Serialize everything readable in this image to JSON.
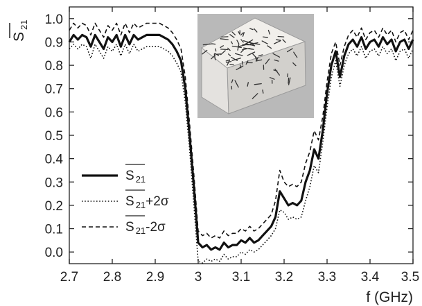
{
  "chart_data": {
    "type": "line",
    "ylabel_main": "S",
    "ylabel_sub": "21",
    "xlabel": "f (GHz)",
    "xlim": [
      2.7,
      3.5
    ],
    "ylim": [
      -0.05,
      1.05
    ],
    "xticks": [
      2.7,
      2.8,
      2.9,
      3.0,
      3.1,
      3.2,
      3.3,
      3.4,
      3.5
    ],
    "xtick_labels": [
      "2.7",
      "2.8",
      "2.9",
      "3",
      "3.1",
      "3.2",
      "3.3",
      "3.4",
      "3.5"
    ],
    "yticks": [
      0.0,
      0.1,
      0.2,
      0.3,
      0.4,
      0.5,
      0.6,
      0.7,
      0.8,
      0.9,
      1.0
    ],
    "ytick_labels": [
      "0.0",
      "0.1",
      "0.2",
      "0.3",
      "0.4",
      "0.5",
      "0.6",
      "0.7",
      "0.8",
      "0.9",
      "1.0"
    ],
    "grid": false,
    "legend_position": "left",
    "inset": "photograph of a cubic sample with a surface pattern of short randomly oriented dark strokes",
    "series": [
      {
        "legend_main": "S",
        "legend_sub": "21",
        "legend_suffix": "",
        "line_style": "solid",
        "x": [
          2.7,
          2.71,
          2.72,
          2.73,
          2.74,
          2.75,
          2.76,
          2.77,
          2.78,
          2.79,
          2.8,
          2.81,
          2.82,
          2.83,
          2.84,
          2.85,
          2.86,
          2.87,
          2.88,
          2.89,
          2.9,
          2.91,
          2.92,
          2.93,
          2.94,
          2.95,
          2.96,
          2.97,
          2.98,
          2.99,
          3.0,
          3.01,
          3.02,
          3.03,
          3.04,
          3.05,
          3.06,
          3.07,
          3.08,
          3.09,
          3.1,
          3.11,
          3.12,
          3.13,
          3.14,
          3.15,
          3.16,
          3.17,
          3.18,
          3.19,
          3.2,
          3.21,
          3.22,
          3.23,
          3.24,
          3.25,
          3.26,
          3.27,
          3.28,
          3.29,
          3.3,
          3.31,
          3.32,
          3.33,
          3.34,
          3.35,
          3.36,
          3.37,
          3.38,
          3.39,
          3.4,
          3.41,
          3.42,
          3.43,
          3.44,
          3.45,
          3.46,
          3.47,
          3.48,
          3.49,
          3.5
        ],
        "y": [
          0.9,
          0.93,
          0.91,
          0.93,
          0.92,
          0.88,
          0.93,
          0.9,
          0.87,
          0.92,
          0.9,
          0.93,
          0.88,
          0.93,
          0.89,
          0.93,
          0.91,
          0.92,
          0.93,
          0.93,
          0.93,
          0.93,
          0.92,
          0.91,
          0.89,
          0.86,
          0.82,
          0.7,
          0.5,
          0.28,
          0.04,
          0.02,
          0.03,
          0.01,
          0.02,
          0.01,
          0.04,
          0.02,
          0.03,
          0.03,
          0.05,
          0.04,
          0.06,
          0.04,
          0.05,
          0.07,
          0.09,
          0.11,
          0.15,
          0.26,
          0.23,
          0.2,
          0.21,
          0.2,
          0.22,
          0.3,
          0.35,
          0.44,
          0.4,
          0.52,
          0.68,
          0.8,
          0.86,
          0.75,
          0.84,
          0.89,
          0.91,
          0.88,
          0.92,
          0.87,
          0.9,
          0.91,
          0.88,
          0.92,
          0.89,
          0.91,
          0.86,
          0.9,
          0.91,
          0.87,
          0.91
        ]
      },
      {
        "legend_main": "S",
        "legend_sub": "21",
        "legend_suffix": "+2σ",
        "line_style": "dotted",
        "x": [
          2.7,
          2.71,
          2.72,
          2.73,
          2.74,
          2.75,
          2.76,
          2.77,
          2.78,
          2.79,
          2.8,
          2.81,
          2.82,
          2.83,
          2.84,
          2.85,
          2.86,
          2.87,
          2.88,
          2.89,
          2.9,
          2.91,
          2.92,
          2.93,
          2.94,
          2.95,
          2.96,
          2.97,
          2.98,
          2.99,
          3.0,
          3.01,
          3.02,
          3.03,
          3.04,
          3.05,
          3.06,
          3.07,
          3.08,
          3.09,
          3.1,
          3.11,
          3.12,
          3.13,
          3.14,
          3.15,
          3.16,
          3.17,
          3.18,
          3.19,
          3.2,
          3.21,
          3.22,
          3.23,
          3.24,
          3.25,
          3.26,
          3.27,
          3.28,
          3.29,
          3.3,
          3.31,
          3.32,
          3.33,
          3.34,
          3.35,
          3.36,
          3.37,
          3.38,
          3.39,
          3.4,
          3.41,
          3.42,
          3.43,
          3.44,
          3.45,
          3.46,
          3.47,
          3.48,
          3.49,
          3.5
        ],
        "y": [
          0.87,
          0.89,
          0.87,
          0.89,
          0.88,
          0.83,
          0.89,
          0.86,
          0.83,
          0.88,
          0.86,
          0.89,
          0.84,
          0.89,
          0.85,
          0.89,
          0.86,
          0.87,
          0.88,
          0.88,
          0.88,
          0.88,
          0.87,
          0.86,
          0.84,
          0.81,
          0.77,
          0.64,
          0.44,
          0.2,
          -0.04,
          -0.05,
          -0.03,
          -0.04,
          -0.03,
          -0.04,
          -0.01,
          -0.03,
          -0.02,
          -0.02,
          0.0,
          -0.01,
          0.01,
          0.0,
          0.01,
          0.03,
          0.05,
          0.07,
          0.1,
          0.18,
          0.17,
          0.14,
          0.15,
          0.14,
          0.15,
          0.22,
          0.28,
          0.37,
          0.34,
          0.47,
          0.62,
          0.75,
          0.82,
          0.71,
          0.8,
          0.85,
          0.87,
          0.84,
          0.88,
          0.83,
          0.86,
          0.87,
          0.84,
          0.88,
          0.85,
          0.87,
          0.82,
          0.86,
          0.87,
          0.83,
          0.87
        ]
      },
      {
        "legend_main": "S",
        "legend_sub": "21",
        "legend_suffix": "-2σ",
        "line_style": "dashed",
        "x": [
          2.7,
          2.71,
          2.72,
          2.73,
          2.74,
          2.75,
          2.76,
          2.77,
          2.78,
          2.79,
          2.8,
          2.81,
          2.82,
          2.83,
          2.84,
          2.85,
          2.86,
          2.87,
          2.88,
          2.89,
          2.9,
          2.91,
          2.92,
          2.93,
          2.94,
          2.95,
          2.96,
          2.97,
          2.98,
          2.99,
          3.0,
          3.01,
          3.02,
          3.03,
          3.04,
          3.05,
          3.06,
          3.07,
          3.08,
          3.09,
          3.1,
          3.11,
          3.12,
          3.13,
          3.14,
          3.15,
          3.16,
          3.17,
          3.18,
          3.19,
          3.2,
          3.21,
          3.22,
          3.23,
          3.24,
          3.25,
          3.26,
          3.27,
          3.28,
          3.29,
          3.3,
          3.31,
          3.32,
          3.33,
          3.34,
          3.35,
          3.36,
          3.37,
          3.38,
          3.39,
          3.4,
          3.41,
          3.42,
          3.43,
          3.44,
          3.45,
          3.46,
          3.47,
          3.48,
          3.49,
          3.5
        ],
        "y": [
          0.95,
          0.98,
          0.96,
          0.98,
          0.97,
          0.93,
          0.98,
          0.95,
          0.92,
          0.97,
          0.95,
          0.98,
          0.93,
          0.98,
          0.94,
          0.98,
          0.96,
          0.97,
          0.98,
          0.98,
          0.98,
          0.98,
          0.97,
          0.96,
          0.94,
          0.91,
          0.87,
          0.75,
          0.55,
          0.33,
          0.09,
          0.07,
          0.08,
          0.06,
          0.07,
          0.06,
          0.09,
          0.07,
          0.08,
          0.08,
          0.1,
          0.09,
          0.11,
          0.09,
          0.1,
          0.12,
          0.14,
          0.16,
          0.22,
          0.35,
          0.3,
          0.28,
          0.29,
          0.28,
          0.3,
          0.38,
          0.43,
          0.52,
          0.48,
          0.58,
          0.73,
          0.85,
          0.9,
          0.8,
          0.88,
          0.93,
          0.95,
          0.92,
          0.96,
          0.91,
          0.94,
          0.95,
          0.92,
          0.96,
          0.93,
          0.95,
          0.9,
          0.94,
          0.95,
          0.91,
          0.95
        ]
      }
    ]
  }
}
